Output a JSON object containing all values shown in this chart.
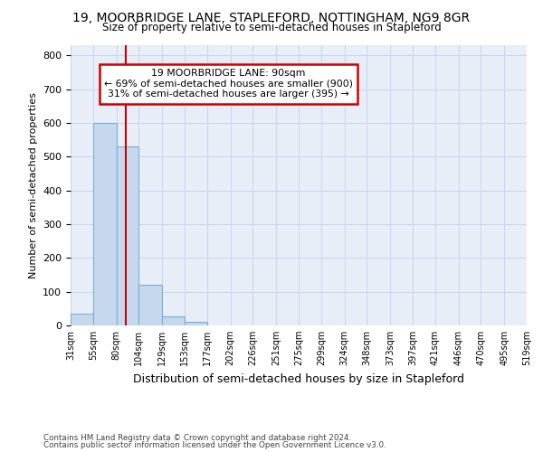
{
  "title": "19, MOORBRIDGE LANE, STAPLEFORD, NOTTINGHAM, NG9 8GR",
  "subtitle": "Size of property relative to semi-detached houses in Stapleford",
  "xlabel": "Distribution of semi-detached houses by size in Stapleford",
  "ylabel": "Number of semi-detached properties",
  "bin_edges": [
    31,
    55,
    80,
    104,
    129,
    153,
    177,
    202,
    226,
    251,
    275,
    299,
    324,
    348,
    373,
    397,
    421,
    446,
    470,
    495,
    519
  ],
  "bar_heights": [
    35,
    600,
    530,
    120,
    27,
    10,
    0,
    0,
    0,
    0,
    0,
    0,
    0,
    0,
    0,
    0,
    0,
    0,
    0,
    0
  ],
  "bar_color": "#c5d8ee",
  "bar_edge_color": "#7aafd4",
  "grid_color": "#c8d4e8",
  "background_color": "#e8eef8",
  "property_size": 90,
  "red_line_color": "#cc0000",
  "annotation_line1": "19 MOORBRIDGE LANE: 90sqm",
  "annotation_line2": "← 69% of semi-detached houses are smaller (900)",
  "annotation_line3": "31% of semi-detached houses are larger (395) →",
  "annotation_box_color": "#cc0000",
  "ylim": [
    0,
    830
  ],
  "yticks": [
    0,
    100,
    200,
    300,
    400,
    500,
    600,
    700,
    800
  ],
  "footnote1": "Contains HM Land Registry data © Crown copyright and database right 2024.",
  "footnote2": "Contains public sector information licensed under the Open Government Licence v3.0."
}
